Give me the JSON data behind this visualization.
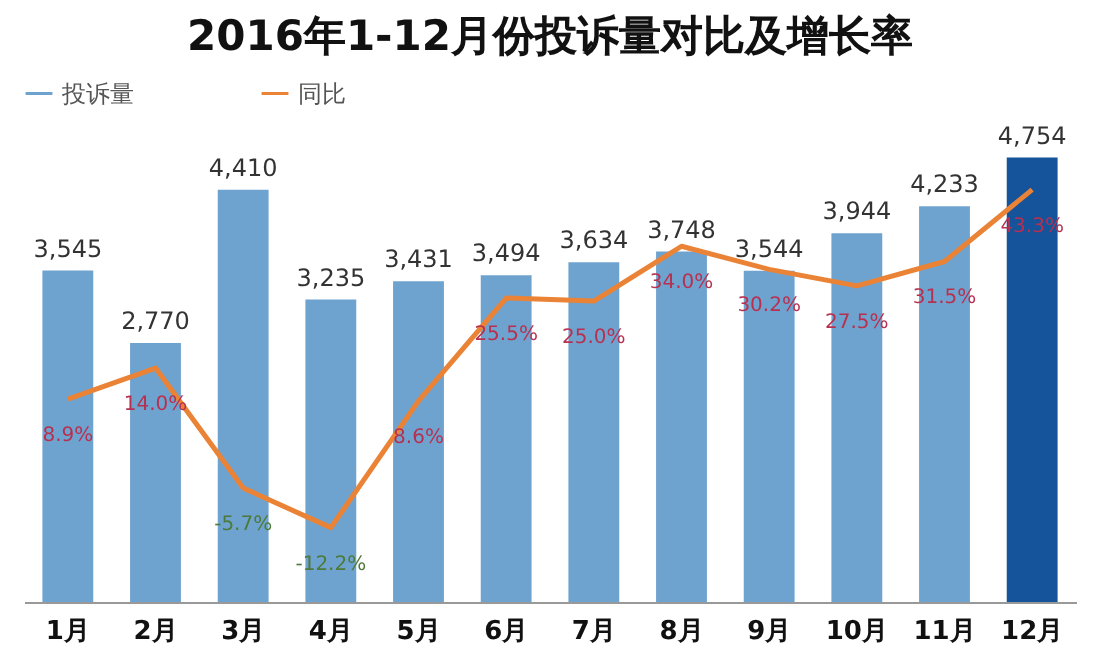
{
  "chart_data": {
    "type": "bar",
    "title": "2016年1-12月份投诉量对比及增长率",
    "categories": [
      "1月",
      "2月",
      "3月",
      "4月",
      "5月",
      "6月",
      "7月",
      "8月",
      "9月",
      "10月",
      "11月",
      "12月"
    ],
    "series": [
      {
        "name": "投诉量",
        "color": "#6fa3cf",
        "value_labels": [
          "3,545",
          "2,770",
          "4,410",
          "3,235",
          "3,431",
          "3,494",
          "3,634",
          "3,748",
          "3,544",
          "3,944",
          "4,233",
          "4,754"
        ],
        "colors": [
          "#6fa3cf",
          "#6fa3cf",
          "#6fa3cf",
          "#6fa3cf",
          "#6fa3cf",
          "#6fa3cf",
          "#6fa3cf",
          "#6fa3cf",
          "#6fa3cf",
          "#6fa3cf",
          "#6fa3cf",
          "#15539a"
        ],
        "values": [
          3545,
          2770,
          4410,
          3235,
          3431,
          3494,
          3634,
          3748,
          3544,
          3944,
          4233,
          4754
        ]
      },
      {
        "name": "同比",
        "type": "line",
        "axis": "y2",
        "color": "#ea8335",
        "values": [
          8.9,
          14.0,
          -5.7,
          -12.2,
          8.6,
          25.5,
          25.0,
          34.0,
          30.2,
          27.5,
          31.5,
          43.3
        ],
        "value_labels": [
          "8.9%",
          "14.0%",
          "-5.7%",
          "-12.2%",
          "8.6%",
          "25.5%",
          "25.0%",
          "34.0%",
          "30.2%",
          "27.5%",
          "31.5%",
          "43.3%"
        ]
      }
    ],
    "legend": "top left",
    "line_style": "solid"
  }
}
